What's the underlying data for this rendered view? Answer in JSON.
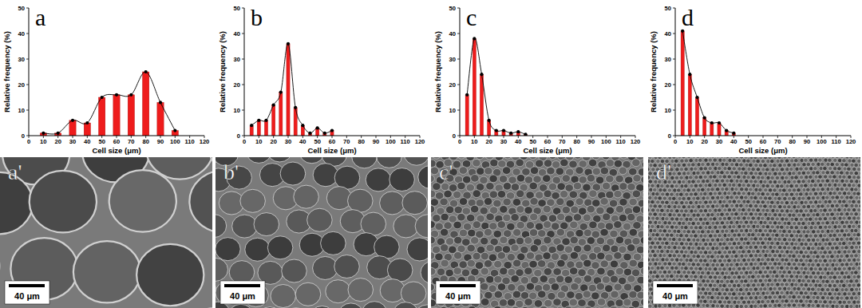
{
  "chart_data": [
    {
      "type": "bar",
      "title": "a",
      "x_label": "Cell size (μm)",
      "y_label": "Relative frequency (%)",
      "x": [
        10,
        20,
        30,
        40,
        50,
        60,
        70,
        80,
        90,
        100
      ],
      "values": [
        1,
        1,
        6,
        5,
        15,
        16,
        16,
        25,
        13,
        2
      ],
      "color": "#ee1c1c",
      "marker": "circle",
      "line_style": "solid",
      "grid": false,
      "xlim": [
        0,
        120
      ],
      "xticks": [
        0,
        10,
        20,
        30,
        40,
        50,
        60,
        70,
        80,
        90,
        100,
        110,
        120
      ],
      "ylim": [
        0,
        50
      ],
      "yticks": [
        0,
        10,
        20,
        30,
        40,
        50
      ]
    },
    {
      "type": "bar",
      "title": "b",
      "x_label": "Cell size (μm)",
      "y_label": "Relative frequency (%)",
      "x": [
        5,
        10,
        15,
        20,
        25,
        30,
        35,
        40,
        45,
        50,
        55,
        60
      ],
      "values": [
        4,
        6,
        6,
        12,
        17,
        36,
        11,
        4,
        1,
        3,
        1,
        2
      ],
      "color": "#ee1c1c",
      "marker": "circle",
      "line_style": "solid",
      "grid": false,
      "xlim": [
        0,
        120
      ],
      "xticks": [
        0,
        10,
        20,
        30,
        40,
        50,
        60,
        70,
        80,
        90,
        100,
        110,
        120
      ],
      "ylim": [
        0,
        50
      ],
      "yticks": [
        0,
        10,
        20,
        30,
        40,
        50
      ]
    },
    {
      "type": "bar",
      "title": "c",
      "x_label": "Cell size (μm)",
      "y_label": "Relative frequency (%)",
      "x": [
        5,
        10,
        15,
        20,
        25,
        30,
        35,
        40,
        45
      ],
      "values": [
        16,
        38,
        24,
        6,
        2,
        2,
        1,
        1.5,
        0.5
      ],
      "color": "#ee1c1c",
      "marker": "circle",
      "line_style": "solid",
      "grid": false,
      "xlim": [
        0,
        120
      ],
      "xticks": [
        0,
        10,
        20,
        30,
        40,
        50,
        60,
        70,
        80,
        90,
        100,
        110,
        120
      ],
      "ylim": [
        0,
        50
      ],
      "yticks": [
        0,
        10,
        20,
        30,
        40,
        50
      ]
    },
    {
      "type": "bar",
      "title": "d",
      "x_label": "Cell size (μm)",
      "y_label": "Relative frequency (%)",
      "x": [
        5,
        10,
        15,
        20,
        25,
        30,
        35,
        40
      ],
      "values": [
        41,
        24,
        15,
        7,
        5,
        5,
        2,
        1
      ],
      "color": "#ee1c1c",
      "marker": "circle",
      "line_style": "solid",
      "grid": false,
      "xlim": [
        0,
        120
      ],
      "xticks": [
        0,
        10,
        20,
        30,
        40,
        50,
        60,
        70,
        80,
        90,
        100,
        110,
        120
      ],
      "ylim": [
        0,
        50
      ],
      "yticks": [
        0,
        10,
        20,
        30,
        40,
        50
      ]
    }
  ],
  "images": [
    {
      "label": "a'",
      "scale_bar": "40 μm"
    },
    {
      "label": "b'",
      "scale_bar": "40 μm"
    },
    {
      "label": "c'",
      "scale_bar": "40 μm"
    },
    {
      "label": "d'",
      "scale_bar": "40 μm"
    }
  ]
}
